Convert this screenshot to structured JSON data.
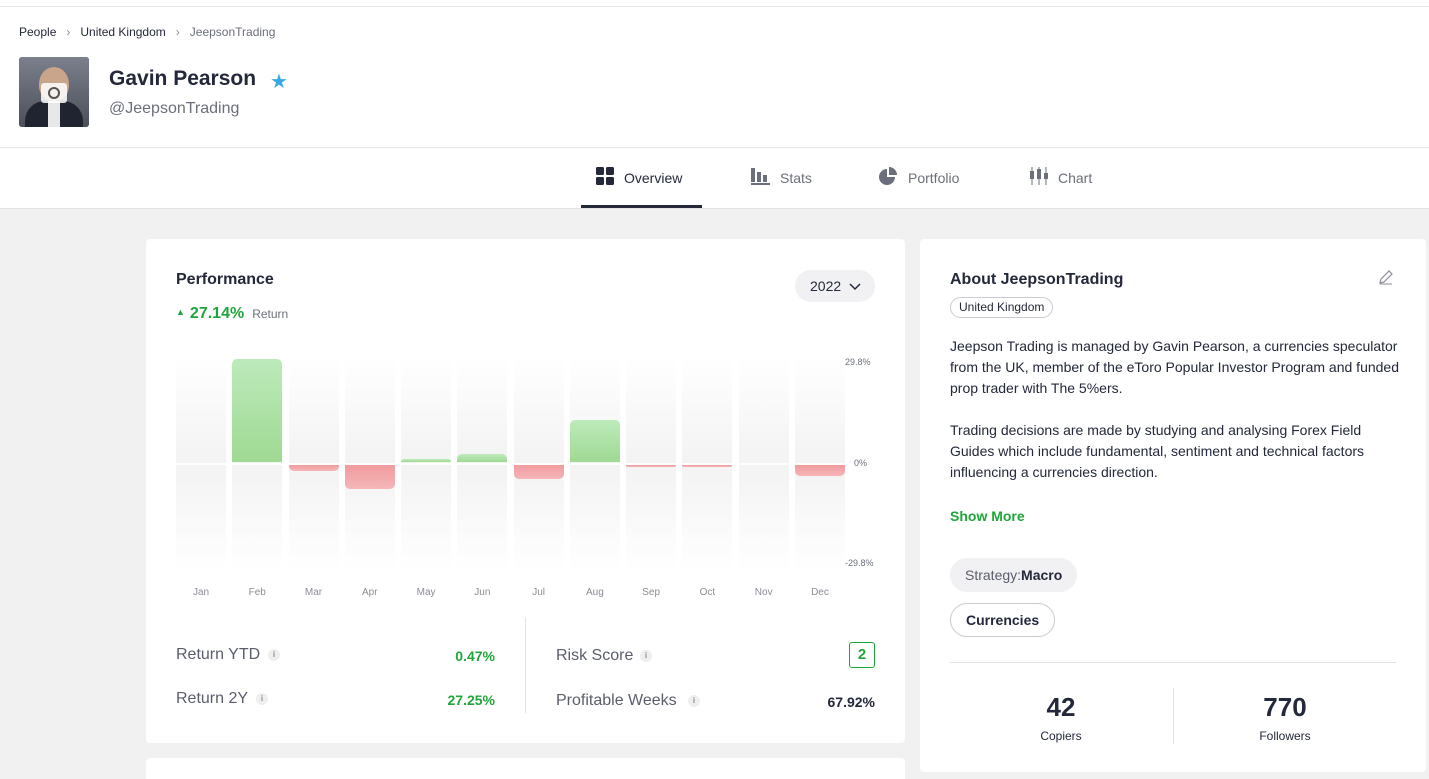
{
  "breadcrumbs": [
    {
      "label": "People"
    },
    {
      "label": "United Kingdom"
    },
    {
      "label": "JeepsonTrading"
    }
  ],
  "profile": {
    "name": "Gavin Pearson",
    "handle": "@JeepsonTrading",
    "verified_icon": "star-icon"
  },
  "tabs": [
    {
      "label": "Overview",
      "icon": "grid-icon",
      "active": true
    },
    {
      "label": "Stats",
      "icon": "bar-chart-icon",
      "active": false
    },
    {
      "label": "Portfolio",
      "icon": "pie-chart-icon",
      "active": false
    },
    {
      "label": "Chart",
      "icon": "candlestick-icon",
      "active": false
    }
  ],
  "performance": {
    "title": "Performance",
    "return_value": "27.14%",
    "return_label": "Return",
    "year": "2022",
    "stats": {
      "return_ytd_label": "Return YTD",
      "return_ytd_value": "0.47%",
      "return_2y_label": "Return 2Y",
      "return_2y_value": "27.25%",
      "risk_score_label": "Risk Score",
      "risk_score_value": "2",
      "profitable_weeks_label": "Profitable Weeks",
      "profitable_weeks_value": "67.92%"
    }
  },
  "chart_data": {
    "type": "bar",
    "title": "Performance",
    "categories": [
      "Jan",
      "Feb",
      "Mar",
      "Apr",
      "May",
      "Jun",
      "Jul",
      "Aug",
      "Sep",
      "Oct",
      "Nov",
      "Dec"
    ],
    "values": [
      0,
      29.0,
      -1.8,
      -6.8,
      0.8,
      2.3,
      -4.0,
      11.8,
      -0.3,
      -0.3,
      0,
      -3.0
    ],
    "ylim": [
      -29.8,
      29.8
    ],
    "y_ticks": [
      "29.8%",
      "0%",
      "-29.8%"
    ],
    "ylabel": "",
    "xlabel": ""
  },
  "about": {
    "title": "About JeepsonTrading",
    "country": "United Kingdom",
    "paragraph1": "Jeepson Trading is managed by Gavin Pearson, a currencies speculator from the UK, member of the eToro Popular Investor Program and funded prop trader with The 5%ers.",
    "paragraph2": "Trading decisions are made by studying and analysing Forex Field Guides which include fundamental, sentiment and technical factors influencing a currencies direction.",
    "show_more": "Show More",
    "strategy_label": "Strategy:",
    "strategy_value": "Macro",
    "category": "Currencies",
    "copiers_value": "42",
    "copiers_label": "Copiers",
    "followers_value": "770",
    "followers_label": "Followers"
  },
  "colors": {
    "positive": "#1fa63a",
    "negative": "#f09b9d",
    "accent_star": "#3ba8e6",
    "text": "#23283a"
  }
}
